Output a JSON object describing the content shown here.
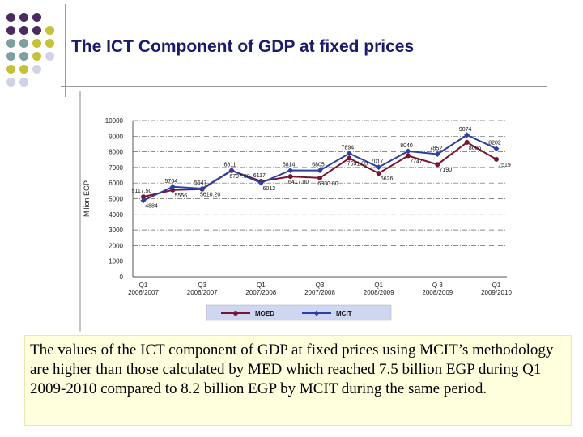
{
  "title": "The ICT Component of GDP at fixed prices",
  "description": "The values of the ICT component of GDP at fixed prices using MCIT’s methodology are higher than those calculated by MED which reached 7.5 billion EGP during Q1 2009-2010 compared to 8.2 billion EGP by MCIT during the same period.",
  "colors": {
    "moed": "#7a1530",
    "mcit": "#2b3fa8",
    "accent_purple": "#4b2a5f",
    "accent_teal": "#7f9ea0",
    "accent_yellow": "#c5c23a",
    "accent_lavender": "#d0d3e6"
  },
  "chart_data": {
    "type": "line",
    "ylabel": "Milion EGP",
    "ylim": [
      0,
      10000
    ],
    "yticks": [
      0,
      1000,
      2000,
      3000,
      4000,
      5000,
      6000,
      7000,
      8000,
      9000,
      10000
    ],
    "grid": true,
    "legend_position": "bottom",
    "x_tick_labels": [
      {
        "q": "Q1",
        "y": "2006/2007"
      },
      {
        "q": "Q3",
        "y": "2006/2007"
      },
      {
        "q": "Q1",
        "y": "2007/2008"
      },
      {
        "q": "Q3",
        "y": "2007/2008"
      },
      {
        "q": "Q1",
        "y": "2008/2009"
      },
      {
        "q": "Q 3",
        "y": "2008/2009"
      },
      {
        "q": "Q1",
        "y": "2009/2010"
      }
    ],
    "series": [
      {
        "name": "MOED",
        "values": [
          5117.5,
          5556.4,
          5610.2,
          6797,
          6117,
          6417,
          6330,
          7591,
          6626,
          7747,
          7190,
          8606,
          7519
        ],
        "labels": [
          "5117.50",
          "5556",
          "5610.20",
          "6797.00",
          "6117",
          "6417.00",
          "6330.00",
          "7591.00",
          "6626",
          "7747",
          "7190",
          "8606",
          "7519"
        ]
      },
      {
        "name": "MCIT",
        "values": [
          4884,
          5764,
          5647,
          6811,
          6012,
          6814,
          6805,
          7894,
          7017,
          8040,
          7852,
          9074,
          8202
        ],
        "labels": [
          "4884",
          "5764",
          "5647",
          "6811",
          "6012",
          "6814",
          "6805",
          "7894",
          "7017",
          "8040",
          "7852",
          "9074",
          "8202"
        ]
      }
    ]
  }
}
